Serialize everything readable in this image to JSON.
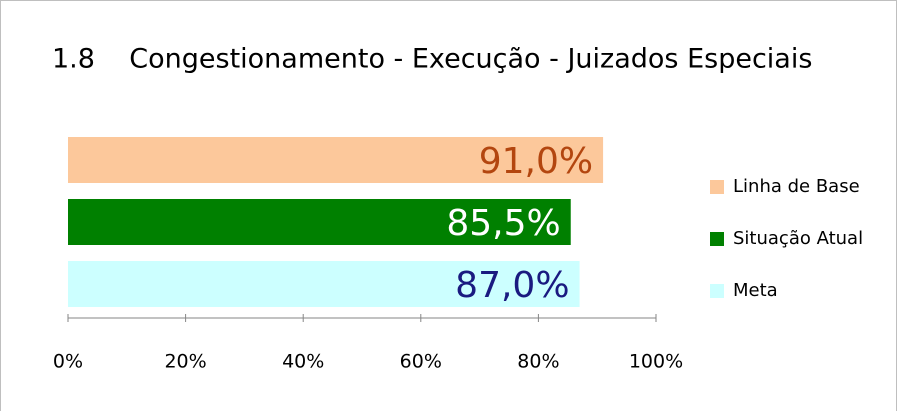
{
  "chart_data": {
    "type": "hbar",
    "title": "1.8    Congestionamento - Execução - Juizados Especiais",
    "series": [
      {
        "name": "Linha de Base",
        "color": "#fcc89b",
        "label_color": "#b3460f",
        "values": [
          91.0
        ],
        "value_labels": [
          "91,0%"
        ]
      },
      {
        "name": "Situação Atual",
        "color": "#008000",
        "label_color": "#ffffff",
        "values": [
          85.5
        ],
        "value_labels": [
          "85,5%"
        ]
      },
      {
        "name": "Meta",
        "color": "#ccffff",
        "label_color": "#1a1a80",
        "values": [
          87.0
        ],
        "value_labels": [
          "87,0%"
        ]
      }
    ],
    "xlim": [
      0,
      100
    ],
    "xticks": [
      {
        "value": 0,
        "label": "0%"
      },
      {
        "value": 20,
        "label": "20%"
      },
      {
        "value": 40,
        "label": "40%"
      },
      {
        "value": 60,
        "label": "60%"
      },
      {
        "value": 80,
        "label": "80%"
      },
      {
        "value": 100,
        "label": "100%"
      }
    ],
    "legend": "right"
  }
}
